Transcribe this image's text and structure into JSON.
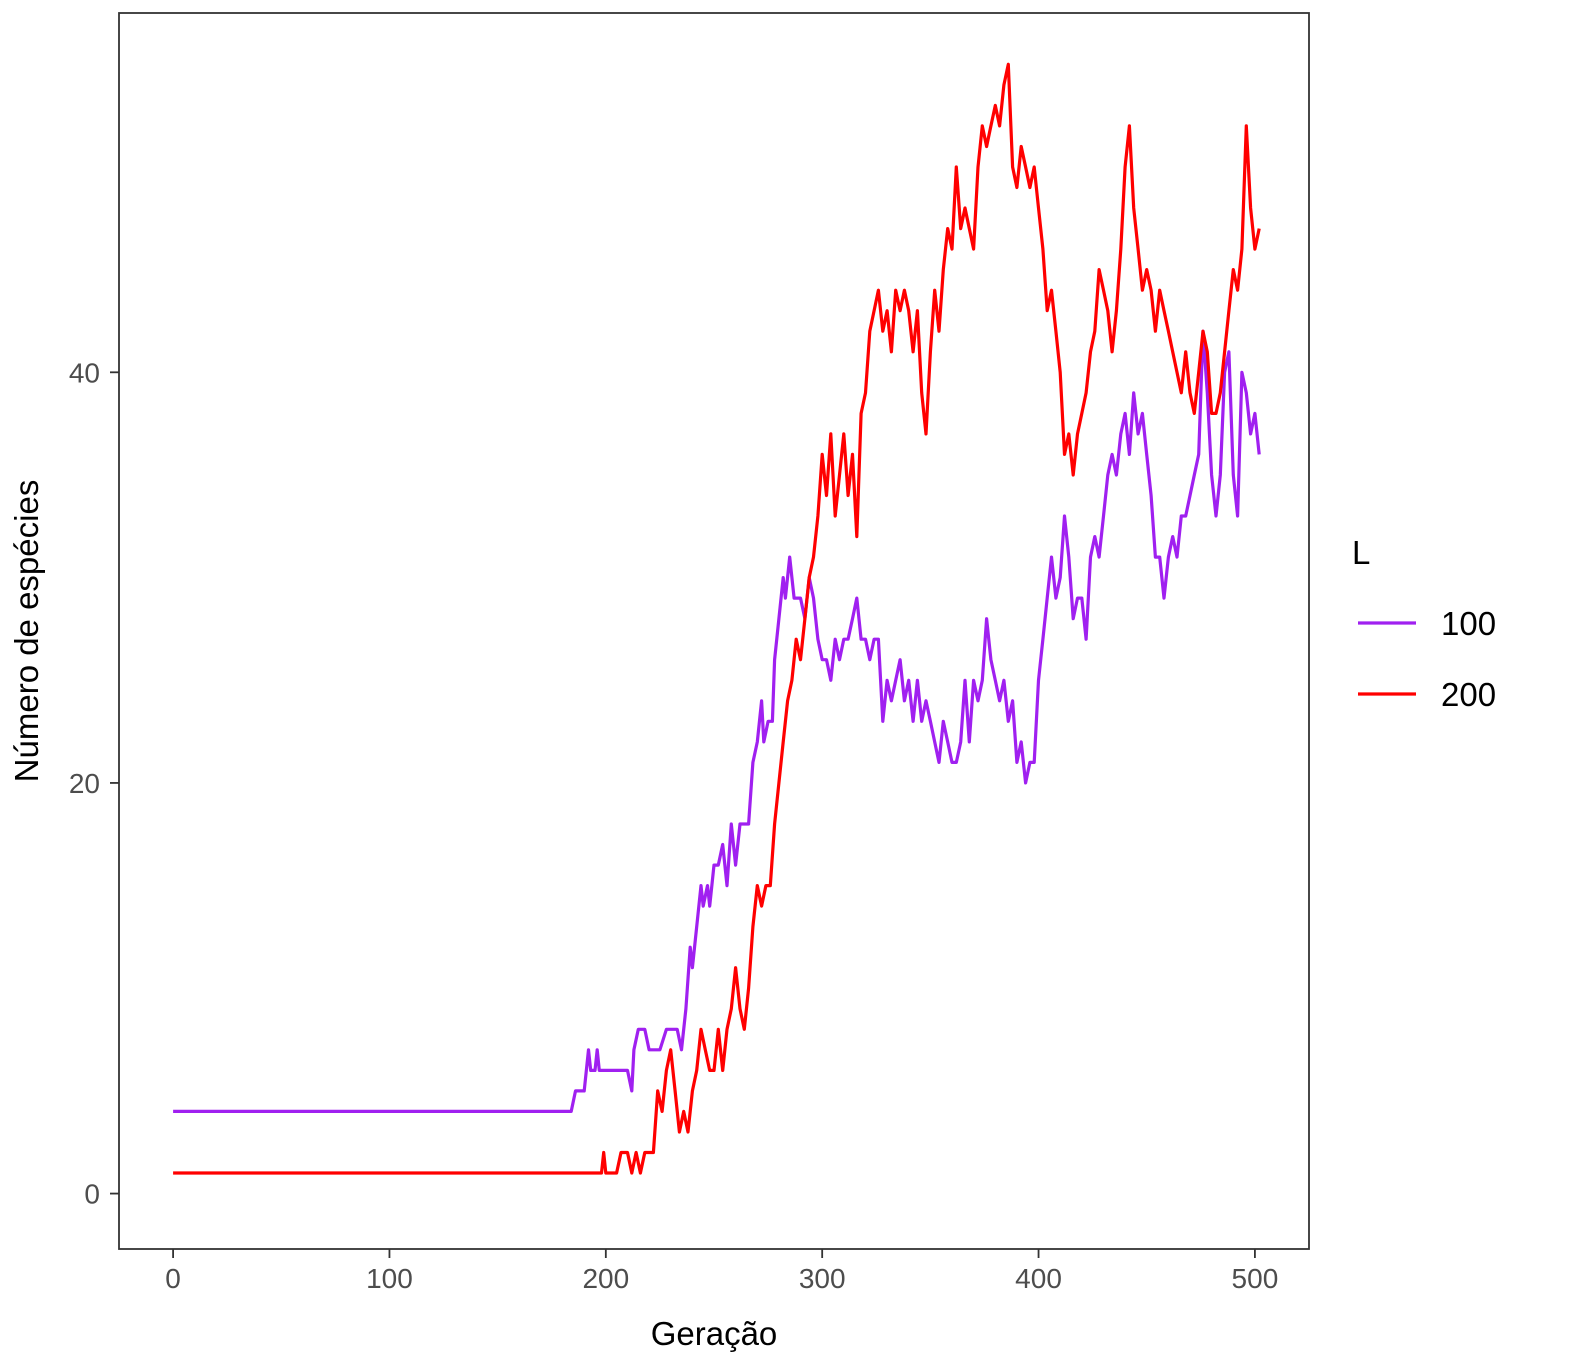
{
  "chart_data": {
    "type": "line",
    "title": "",
    "xlabel": "Geração",
    "ylabel": "Número de espécies",
    "xlim": [
      -25,
      525
    ],
    "ylim": [
      -2.7,
      57.5
    ],
    "x_ticks": [
      0,
      100,
      200,
      300,
      400,
      500
    ],
    "x_tick_labels": [
      "0",
      "100",
      "200",
      "300",
      "400",
      "500"
    ],
    "y_ticks": [
      0,
      20,
      40
    ],
    "y_tick_labels": [
      "0",
      "20",
      "40"
    ],
    "grid": false,
    "legend": {
      "title": "L",
      "position": "right"
    },
    "series": [
      {
        "name": "100",
        "color": "#a020f0",
        "points": [
          [
            0,
            4
          ],
          [
            20,
            4
          ],
          [
            40,
            4
          ],
          [
            60,
            4
          ],
          [
            80,
            4
          ],
          [
            100,
            4
          ],
          [
            120,
            4
          ],
          [
            140,
            4
          ],
          [
            160,
            4
          ],
          [
            184,
            4
          ],
          [
            186,
            5
          ],
          [
            190,
            5
          ],
          [
            192,
            7
          ],
          [
            193,
            6
          ],
          [
            195,
            6
          ],
          [
            196,
            7
          ],
          [
            197,
            6
          ],
          [
            205,
            6
          ],
          [
            210,
            6
          ],
          [
            212,
            5
          ],
          [
            213,
            7
          ],
          [
            215,
            8
          ],
          [
            218,
            8
          ],
          [
            220,
            7
          ],
          [
            225,
            7
          ],
          [
            228,
            8
          ],
          [
            233,
            8
          ],
          [
            235,
            7
          ],
          [
            237,
            9
          ],
          [
            239,
            12
          ],
          [
            240,
            11
          ],
          [
            242,
            13
          ],
          [
            244,
            15
          ],
          [
            245,
            14
          ],
          [
            247,
            15
          ],
          [
            248,
            14
          ],
          [
            250,
            16
          ],
          [
            252,
            16
          ],
          [
            254,
            17
          ],
          [
            256,
            15
          ],
          [
            258,
            18
          ],
          [
            260,
            16
          ],
          [
            262,
            18
          ],
          [
            266,
            18
          ],
          [
            268,
            21
          ],
          [
            270,
            22
          ],
          [
            272,
            24
          ],
          [
            273,
            22
          ],
          [
            275,
            23
          ],
          [
            277,
            23
          ],
          [
            278,
            26
          ],
          [
            280,
            28
          ],
          [
            282,
            30
          ],
          [
            283,
            29
          ],
          [
            285,
            31
          ],
          [
            287,
            29
          ],
          [
            290,
            29
          ],
          [
            292,
            28
          ],
          [
            294,
            30
          ],
          [
            296,
            29
          ],
          [
            298,
            27
          ],
          [
            300,
            26
          ],
          [
            302,
            26
          ],
          [
            304,
            25
          ],
          [
            306,
            27
          ],
          [
            308,
            26
          ],
          [
            310,
            27
          ],
          [
            312,
            27
          ],
          [
            314,
            28
          ],
          [
            316,
            29
          ],
          [
            318,
            27
          ],
          [
            320,
            27
          ],
          [
            322,
            26
          ],
          [
            324,
            27
          ],
          [
            326,
            27
          ],
          [
            328,
            23
          ],
          [
            330,
            25
          ],
          [
            332,
            24
          ],
          [
            334,
            25
          ],
          [
            336,
            26
          ],
          [
            338,
            24
          ],
          [
            340,
            25
          ],
          [
            342,
            23
          ],
          [
            344,
            25
          ],
          [
            346,
            23
          ],
          [
            348,
            24
          ],
          [
            350,
            23
          ],
          [
            352,
            22
          ],
          [
            354,
            21
          ],
          [
            356,
            23
          ],
          [
            358,
            22
          ],
          [
            360,
            21
          ],
          [
            362,
            21
          ],
          [
            364,
            22
          ],
          [
            366,
            25
          ],
          [
            368,
            22
          ],
          [
            370,
            25
          ],
          [
            372,
            24
          ],
          [
            374,
            25
          ],
          [
            376,
            28
          ],
          [
            378,
            26
          ],
          [
            380,
            25
          ],
          [
            382,
            24
          ],
          [
            384,
            25
          ],
          [
            386,
            23
          ],
          [
            388,
            24
          ],
          [
            390,
            21
          ],
          [
            392,
            22
          ],
          [
            394,
            20
          ],
          [
            396,
            21
          ],
          [
            398,
            21
          ],
          [
            400,
            25
          ],
          [
            402,
            27
          ],
          [
            404,
            29
          ],
          [
            406,
            31
          ],
          [
            408,
            29
          ],
          [
            410,
            30
          ],
          [
            412,
            33
          ],
          [
            414,
            31
          ],
          [
            416,
            28
          ],
          [
            418,
            29
          ],
          [
            420,
            29
          ],
          [
            422,
            27
          ],
          [
            424,
            31
          ],
          [
            426,
            32
          ],
          [
            428,
            31
          ],
          [
            430,
            33
          ],
          [
            432,
            35
          ],
          [
            434,
            36
          ],
          [
            436,
            35
          ],
          [
            438,
            37
          ],
          [
            440,
            38
          ],
          [
            442,
            36
          ],
          [
            444,
            39
          ],
          [
            446,
            37
          ],
          [
            448,
            38
          ],
          [
            450,
            36
          ],
          [
            452,
            34
          ],
          [
            454,
            31
          ],
          [
            456,
            31
          ],
          [
            458,
            29
          ],
          [
            460,
            31
          ],
          [
            462,
            32
          ],
          [
            464,
            31
          ],
          [
            466,
            33
          ],
          [
            468,
            33
          ],
          [
            470,
            34
          ],
          [
            472,
            35
          ],
          [
            474,
            36
          ],
          [
            476,
            42
          ],
          [
            478,
            39
          ],
          [
            480,
            35
          ],
          [
            482,
            33
          ],
          [
            484,
            35
          ],
          [
            486,
            40
          ],
          [
            488,
            41
          ],
          [
            490,
            35
          ],
          [
            492,
            33
          ],
          [
            494,
            40
          ],
          [
            496,
            39
          ],
          [
            498,
            37
          ],
          [
            500,
            38
          ],
          [
            502,
            36
          ]
        ]
      },
      {
        "name": "200",
        "color": "#ff0000",
        "points": [
          [
            0,
            1
          ],
          [
            20,
            1
          ],
          [
            40,
            1
          ],
          [
            60,
            1
          ],
          [
            80,
            1
          ],
          [
            100,
            1
          ],
          [
            120,
            1
          ],
          [
            140,
            1
          ],
          [
            160,
            1
          ],
          [
            180,
            1
          ],
          [
            198,
            1
          ],
          [
            199,
            2
          ],
          [
            200,
            1
          ],
          [
            205,
            1
          ],
          [
            207,
            2
          ],
          [
            210,
            2
          ],
          [
            212,
            1
          ],
          [
            214,
            2
          ],
          [
            216,
            1
          ],
          [
            218,
            2
          ],
          [
            222,
            2
          ],
          [
            224,
            5
          ],
          [
            226,
            4
          ],
          [
            228,
            6
          ],
          [
            230,
            7
          ],
          [
            232,
            5
          ],
          [
            234,
            3
          ],
          [
            236,
            4
          ],
          [
            238,
            3
          ],
          [
            240,
            5
          ],
          [
            242,
            6
          ],
          [
            244,
            8
          ],
          [
            246,
            7
          ],
          [
            248,
            6
          ],
          [
            250,
            6
          ],
          [
            252,
            8
          ],
          [
            254,
            6
          ],
          [
            256,
            8
          ],
          [
            258,
            9
          ],
          [
            260,
            11
          ],
          [
            262,
            9
          ],
          [
            264,
            8
          ],
          [
            266,
            10
          ],
          [
            268,
            13
          ],
          [
            270,
            15
          ],
          [
            272,
            14
          ],
          [
            274,
            15
          ],
          [
            276,
            15
          ],
          [
            278,
            18
          ],
          [
            280,
            20
          ],
          [
            282,
            22
          ],
          [
            284,
            24
          ],
          [
            286,
            25
          ],
          [
            288,
            27
          ],
          [
            290,
            26
          ],
          [
            292,
            28
          ],
          [
            294,
            30
          ],
          [
            296,
            31
          ],
          [
            298,
            33
          ],
          [
            300,
            36
          ],
          [
            302,
            34
          ],
          [
            304,
            37
          ],
          [
            306,
            33
          ],
          [
            308,
            35
          ],
          [
            310,
            37
          ],
          [
            312,
            34
          ],
          [
            314,
            36
          ],
          [
            316,
            32
          ],
          [
            318,
            38
          ],
          [
            320,
            39
          ],
          [
            322,
            42
          ],
          [
            324,
            43
          ],
          [
            326,
            44
          ],
          [
            328,
            42
          ],
          [
            330,
            43
          ],
          [
            332,
            41
          ],
          [
            334,
            44
          ],
          [
            336,
            43
          ],
          [
            338,
            44
          ],
          [
            340,
            43
          ],
          [
            342,
            41
          ],
          [
            344,
            43
          ],
          [
            346,
            39
          ],
          [
            348,
            37
          ],
          [
            350,
            41
          ],
          [
            352,
            44
          ],
          [
            354,
            42
          ],
          [
            356,
            45
          ],
          [
            358,
            47
          ],
          [
            360,
            46
          ],
          [
            362,
            50
          ],
          [
            364,
            47
          ],
          [
            366,
            48
          ],
          [
            368,
            47
          ],
          [
            370,
            46
          ],
          [
            372,
            50
          ],
          [
            374,
            52
          ],
          [
            376,
            51
          ],
          [
            378,
            52
          ],
          [
            380,
            53
          ],
          [
            382,
            52
          ],
          [
            384,
            54
          ],
          [
            386,
            55
          ],
          [
            388,
            50
          ],
          [
            390,
            49
          ],
          [
            392,
            51
          ],
          [
            394,
            50
          ],
          [
            396,
            49
          ],
          [
            398,
            50
          ],
          [
            400,
            48
          ],
          [
            402,
            46
          ],
          [
            404,
            43
          ],
          [
            406,
            44
          ],
          [
            408,
            42
          ],
          [
            410,
            40
          ],
          [
            412,
            36
          ],
          [
            414,
            37
          ],
          [
            416,
            35
          ],
          [
            418,
            37
          ],
          [
            420,
            38
          ],
          [
            422,
            39
          ],
          [
            424,
            41
          ],
          [
            426,
            42
          ],
          [
            428,
            45
          ],
          [
            430,
            44
          ],
          [
            432,
            43
          ],
          [
            434,
            41
          ],
          [
            436,
            43
          ],
          [
            438,
            46
          ],
          [
            440,
            50
          ],
          [
            442,
            52
          ],
          [
            444,
            48
          ],
          [
            446,
            46
          ],
          [
            448,
            44
          ],
          [
            450,
            45
          ],
          [
            452,
            44
          ],
          [
            454,
            42
          ],
          [
            456,
            44
          ],
          [
            458,
            43
          ],
          [
            460,
            42
          ],
          [
            462,
            41
          ],
          [
            464,
            40
          ],
          [
            466,
            39
          ],
          [
            468,
            41
          ],
          [
            470,
            39
          ],
          [
            472,
            38
          ],
          [
            474,
            40
          ],
          [
            476,
            42
          ],
          [
            478,
            41
          ],
          [
            480,
            38
          ],
          [
            482,
            38
          ],
          [
            484,
            39
          ],
          [
            486,
            41
          ],
          [
            488,
            43
          ],
          [
            490,
            45
          ],
          [
            492,
            44
          ],
          [
            494,
            46
          ],
          [
            496,
            52
          ],
          [
            498,
            48
          ],
          [
            500,
            46
          ],
          [
            502,
            47
          ]
        ]
      }
    ]
  }
}
